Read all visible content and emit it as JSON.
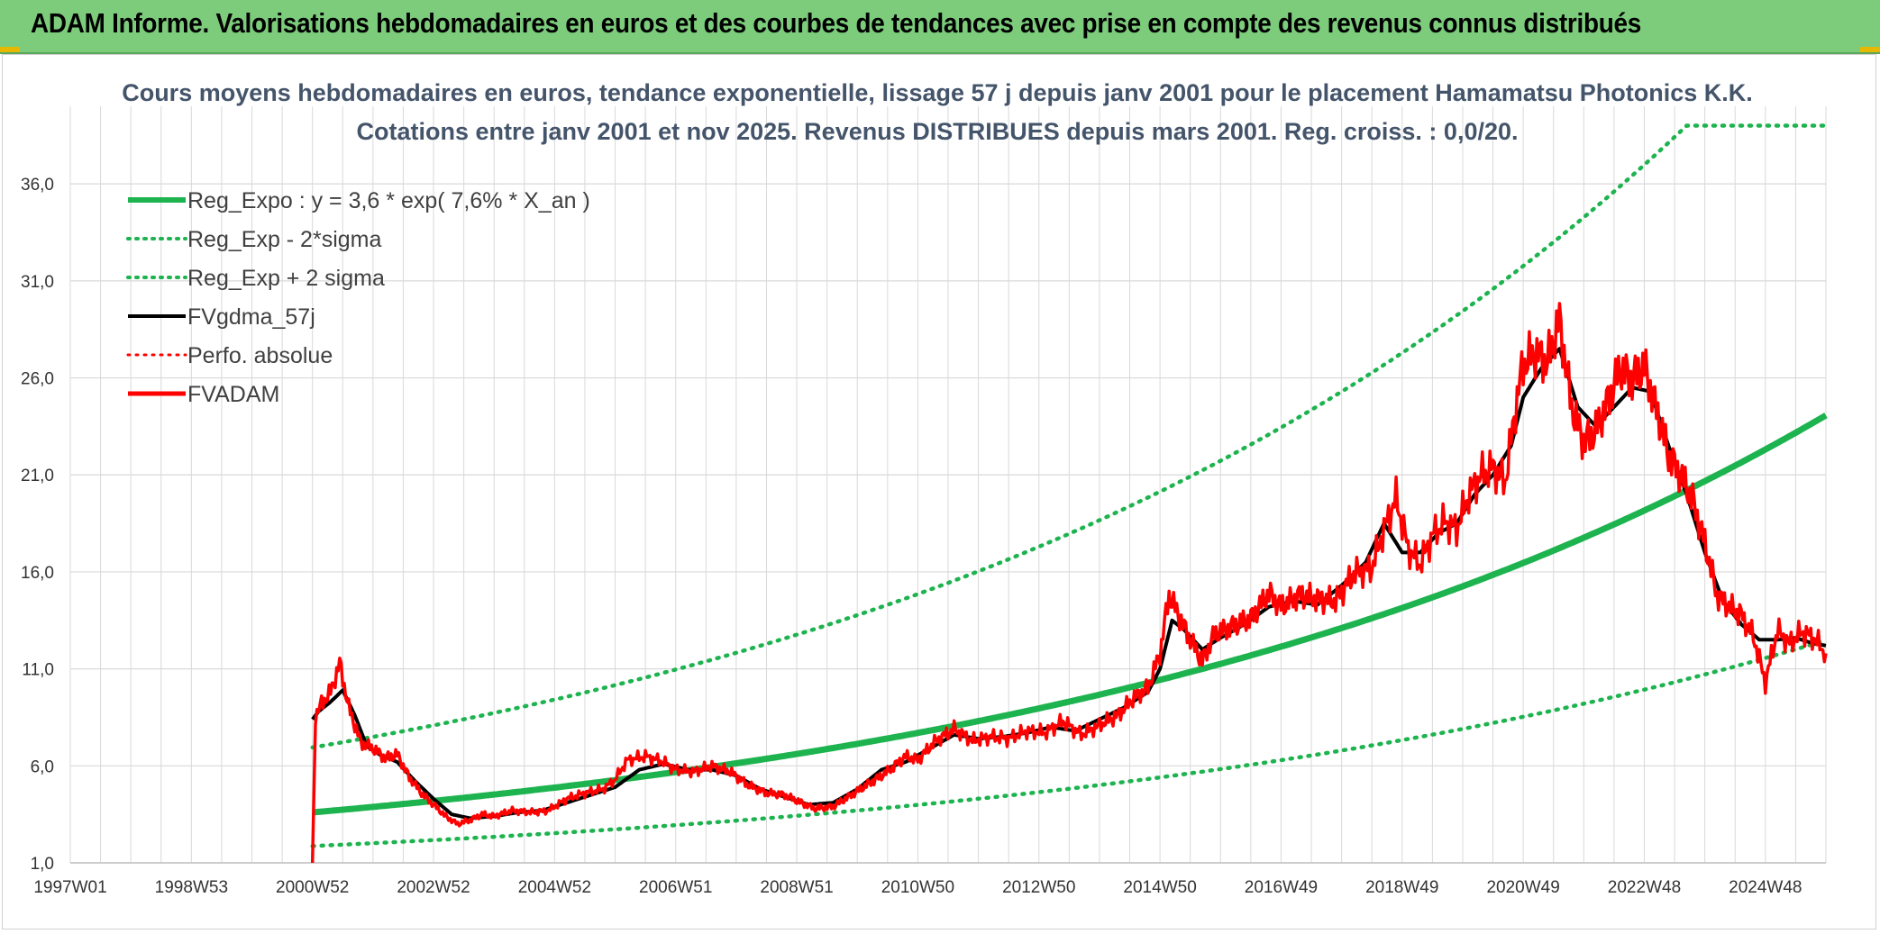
{
  "banner": {
    "title": "ADAM Informe. Valorisations hebdomadaires en euros et des courbes de tendances avec prise en compte des revenus connus distribués"
  },
  "colors": {
    "banner_bg": "#7ccc7c",
    "trend": "#1db34f",
    "smoothed": "#000000",
    "price": "#ff0000",
    "grid": "#d9d9d9"
  },
  "chart_data": {
    "type": "line",
    "title_line1": "Cours moyens hebdomadaires en euros, tendance exponentielle, lissage 57 j depuis janv 2001 pour le placement Hamamatsu Photonics K.K.",
    "title_line2": "Cotations entre janv 2001 et nov 2025. Revenus DISTRIBUES depuis mars 2001. Reg. croiss. : 0,0/20.",
    "x_tick_labels": [
      "1997W01",
      "1998W53",
      "2000W52",
      "2002W52",
      "2004W52",
      "2006W51",
      "2008W51",
      "2010W50",
      "2012W50",
      "2014W50",
      "2016W49",
      "2018W49",
      "2020W49",
      "2022W48",
      "2024W48"
    ],
    "x_tick_years": [
      1997.0,
      1999.0,
      2001.0,
      2003.0,
      2005.0,
      2007.0,
      2009.0,
      2011.0,
      2013.0,
      2015.0,
      2017.0,
      2019.0,
      2021.0,
      2023.0,
      2025.0
    ],
    "xlim": [
      1997.0,
      2026.0
    ],
    "y_tick_labels": [
      "1,0",
      "6,0",
      "11,0",
      "16,0",
      "21,0",
      "26,0",
      "31,0",
      "36,0"
    ],
    "y_ticks": [
      1,
      6,
      11,
      16,
      21,
      26,
      31,
      36
    ],
    "ylim": [
      1,
      40
    ],
    "grid": true,
    "legend_position": "top-left",
    "legend": [
      {
        "label": "Reg_Expo : y = 3,6 * exp( 7,6% *  X_an )",
        "color": "#1db34f",
        "style": "solid",
        "width": 6
      },
      {
        "label": "Reg_Exp - 2*sigma",
        "color": "#1db34f",
        "style": "dotted",
        "width": 4
      },
      {
        "label": "Reg_Exp + 2 sigma",
        "color": "#1db34f",
        "style": "dotted",
        "width": 4
      },
      {
        "label": "FVgdma_57j",
        "color": "#000000",
        "style": "solid",
        "width": 4
      },
      {
        "label": "Perfo. absolue",
        "color": "#ff0000",
        "style": "dotted",
        "width": 3
      },
      {
        "label": "FVADAM",
        "color": "#ff0000",
        "style": "solid",
        "width": 5
      }
    ],
    "regression": {
      "a": 3.6,
      "rate": 0.076,
      "x_start": 2001.0,
      "x_end": 2026.0,
      "upper_cap": 39.0
    },
    "band_factor": 1.93,
    "series": [
      {
        "name": "FVADAM",
        "x": [
          2001.0,
          2001.05,
          2001.15,
          2001.3,
          2001.45,
          2001.6,
          2001.8,
          2002.0,
          2002.2,
          2002.4,
          2002.6,
          2002.8,
          2003.0,
          2003.2,
          2003.4,
          2003.6,
          2003.8,
          2004.0,
          2004.3,
          2004.6,
          2004.9,
          2005.2,
          2005.5,
          2005.8,
          2006.0,
          2006.2,
          2006.5,
          2006.8,
          2007.0,
          2007.3,
          2007.6,
          2007.9,
          2008.2,
          2008.5,
          2008.8,
          2009.0,
          2009.3,
          2009.6,
          2009.9,
          2010.2,
          2010.5,
          2010.8,
          2011.0,
          2011.3,
          2011.6,
          2011.9,
          2012.2,
          2012.5,
          2012.8,
          2013.1,
          2013.4,
          2013.7,
          2014.0,
          2014.3,
          2014.6,
          2014.8,
          2015.0,
          2015.15,
          2015.3,
          2015.5,
          2015.7,
          2015.9,
          2016.2,
          2016.5,
          2016.8,
          2017.0,
          2017.3,
          2017.6,
          2017.9,
          2018.2,
          2018.5,
          2018.7,
          2018.9,
          2019.1,
          2019.3,
          2019.5,
          2019.7,
          2019.9,
          2020.1,
          2020.3,
          2020.5,
          2020.7,
          2020.9,
          2021.0,
          2021.2,
          2021.4,
          2021.6,
          2021.8,
          2022.0,
          2022.2,
          2022.4,
          2022.6,
          2022.8,
          2023.0,
          2023.2,
          2023.4,
          2023.6,
          2023.8,
          2024.0,
          2024.2,
          2024.4,
          2024.6,
          2024.8,
          2025.0,
          2025.2,
          2025.4,
          2025.6,
          2025.8,
          2026.0
        ],
        "y": [
          1.0,
          8.6,
          9.2,
          9.8,
          11.3,
          9.0,
          7.2,
          6.9,
          6.4,
          6.6,
          5.4,
          4.6,
          4.0,
          3.4,
          3.0,
          3.2,
          3.5,
          3.4,
          3.7,
          3.6,
          3.7,
          4.3,
          4.6,
          4.8,
          5.3,
          6.3,
          6.5,
          6.2,
          5.8,
          5.7,
          6.0,
          5.7,
          5.0,
          4.6,
          4.5,
          4.2,
          3.8,
          3.9,
          4.5,
          5.1,
          5.7,
          6.5,
          6.3,
          7.3,
          7.9,
          7.3,
          7.5,
          7.4,
          7.8,
          7.7,
          8.3,
          7.6,
          8.1,
          8.6,
          9.6,
          10.0,
          11.8,
          14.8,
          13.8,
          12.5,
          11.4,
          12.8,
          13.2,
          13.6,
          14.9,
          14.2,
          14.8,
          14.6,
          14.5,
          15.9,
          16.2,
          18.2,
          19.8,
          17.2,
          16.4,
          17.9,
          18.6,
          18.2,
          20.0,
          21.0,
          21.4,
          20.6,
          25.0,
          26.7,
          27.3,
          26.8,
          29.0,
          24.5,
          22.7,
          23.3,
          24.8,
          26.5,
          25.9,
          26.6,
          24.4,
          22.0,
          21.0,
          19.7,
          17.5,
          14.8,
          14.2,
          13.8,
          12.7,
          10.3,
          13.0,
          12.3,
          12.9,
          12.6,
          11.8
        ]
      },
      {
        "name": "FVgdma_57j",
        "x": [
          2001.0,
          2001.1,
          2001.3,
          2001.5,
          2001.7,
          2001.9,
          2002.1,
          2002.4,
          2002.7,
          2003.0,
          2003.3,
          2003.6,
          2004.0,
          2004.4,
          2004.8,
          2005.2,
          2005.6,
          2006.0,
          2006.4,
          2006.8,
          2007.2,
          2007.6,
          2008.0,
          2008.4,
          2008.8,
          2009.2,
          2009.6,
          2010.0,
          2010.4,
          2010.8,
          2011.2,
          2011.6,
          2012.0,
          2012.4,
          2012.8,
          2013.2,
          2013.6,
          2014.0,
          2014.4,
          2014.8,
          2015.0,
          2015.2,
          2015.4,
          2015.7,
          2016.0,
          2016.4,
          2016.8,
          2017.2,
          2017.6,
          2018.0,
          2018.4,
          2018.7,
          2019.0,
          2019.3,
          2019.6,
          2019.9,
          2020.2,
          2020.5,
          2020.8,
          2021.0,
          2021.3,
          2021.6,
          2021.9,
          2022.2,
          2022.5,
          2022.8,
          2023.1,
          2023.4,
          2023.7,
          2024.0,
          2024.3,
          2024.6,
          2024.9,
          2025.2,
          2025.5,
          2025.8,
          2026.0
        ],
        "y": [
          8.4,
          8.8,
          9.3,
          9.9,
          8.6,
          7.0,
          6.6,
          6.2,
          5.2,
          4.3,
          3.5,
          3.3,
          3.4,
          3.6,
          3.7,
          4.1,
          4.5,
          4.9,
          5.8,
          6.1,
          5.8,
          5.8,
          5.5,
          4.8,
          4.4,
          4.0,
          4.1,
          4.8,
          5.8,
          6.2,
          6.9,
          7.6,
          7.4,
          7.5,
          7.7,
          8.0,
          7.8,
          8.4,
          9.0,
          9.8,
          11.0,
          13.5,
          13.0,
          12.0,
          12.6,
          13.3,
          14.2,
          14.5,
          14.3,
          15.3,
          16.5,
          18.5,
          17.0,
          17.0,
          18.0,
          18.5,
          20.0,
          21.0,
          22.5,
          25.0,
          26.5,
          27.5,
          24.5,
          23.5,
          24.5,
          25.5,
          25.3,
          22.5,
          20.0,
          17.0,
          14.5,
          13.3,
          12.5,
          12.5,
          12.6,
          12.3,
          12.2
        ]
      }
    ]
  }
}
